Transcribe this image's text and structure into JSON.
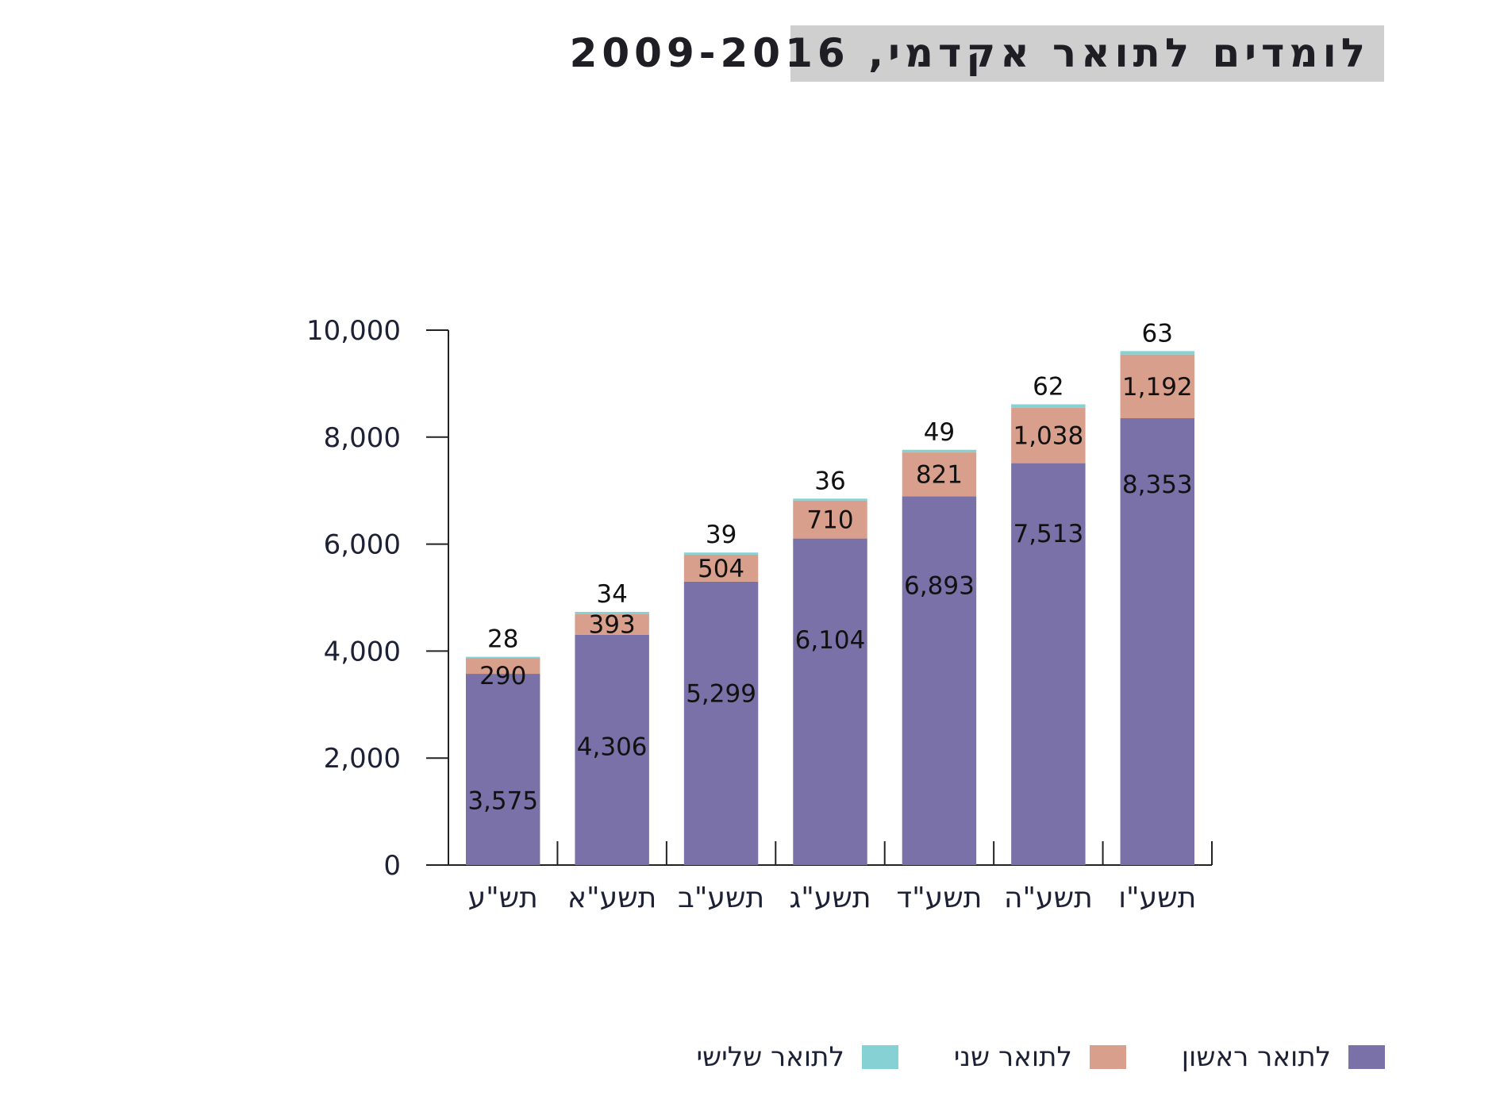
{
  "title": "לומדים לתואר אקדמי, 2009-2016",
  "chart_data": {
    "type": "bar",
    "stacked": true,
    "title": "לומדים לתואר אקדמי, 2009-2016",
    "categories": [
      "תש\"ע",
      "תשע\"א",
      "תשע\"ב",
      "תשע\"ג",
      "תשע\"ד",
      "תשע\"ה",
      "תשע\"ו"
    ],
    "series": [
      {
        "name": "לתואר ראשון",
        "color": "#7971a7",
        "values": [
          3575,
          4306,
          5299,
          6104,
          6893,
          7513,
          8353
        ],
        "labels": [
          "3,575",
          "4,306",
          "5,299",
          "6,104",
          "6,893",
          "7,513",
          "8,353"
        ]
      },
      {
        "name": "לתואר שני",
        "color": "#d8a08c",
        "values": [
          290,
          393,
          504,
          710,
          821,
          1038,
          1192
        ],
        "labels": [
          "290",
          "393",
          "504",
          "710",
          "821",
          "1,038",
          "1,192"
        ]
      },
      {
        "name": "לתואר שלישי",
        "color": "#85d1d3",
        "values": [
          28,
          34,
          39,
          36,
          49,
          62,
          63
        ],
        "labels": [
          "28",
          "34",
          "39",
          "36",
          "49",
          "62",
          "63"
        ]
      }
    ],
    "ylim": [
      0,
      10000
    ],
    "yticks": [
      0,
      2000,
      4000,
      6000,
      8000,
      10000
    ],
    "ytick_labels": [
      "0",
      "2,000",
      "4,000",
      "6,000",
      "8,000",
      "10,000"
    ],
    "grid": false,
    "legend_position": "bottom"
  }
}
